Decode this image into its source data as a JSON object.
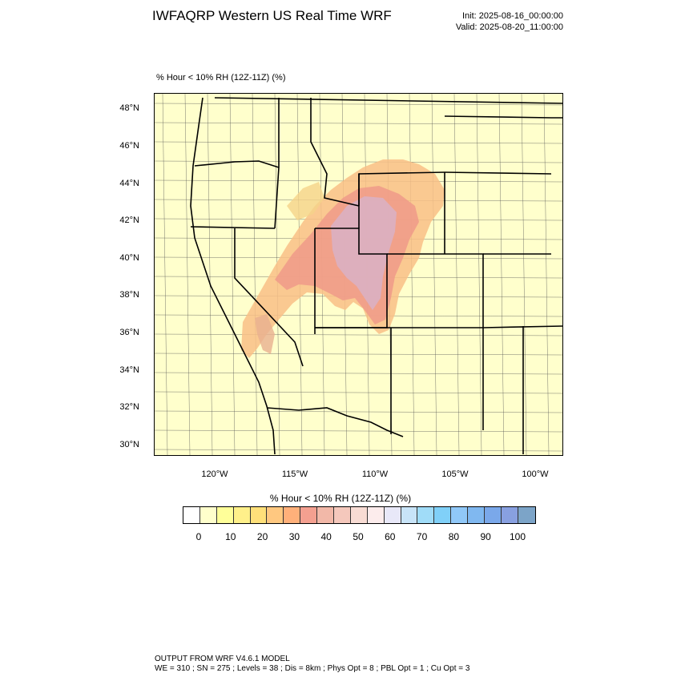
{
  "header": {
    "title": "IWFAQRP Western US Real Time WRF",
    "init": "Init: 2025-08-16_00:00:00",
    "valid": "Valid: 2025-08-20_11:00:00"
  },
  "variable_label": "% Hour < 10% RH (12Z-11Z)   (%)",
  "map": {
    "lat_labels": [
      "48°N",
      "46°N",
      "44°N",
      "42°N",
      "40°N",
      "38°N",
      "36°N",
      "34°N",
      "32°N",
      "30°N"
    ],
    "lon_labels": [
      "120°W",
      "115°W",
      "110°W",
      "105°W",
      "100°W"
    ],
    "background_color": "#ffffcc",
    "region": "Western US"
  },
  "colorbar": {
    "title": "% Hour < 10% RH (12Z-11Z)  (%)",
    "tick_labels": [
      "0",
      "10",
      "20",
      "30",
      "40",
      "50",
      "60",
      "70",
      "80",
      "90",
      "100"
    ],
    "colors": [
      "#ffffff",
      "#ffffcc",
      "#ffff99",
      "#fff08a",
      "#ffe07a",
      "#ffc880",
      "#ffb07a",
      "#f4a090",
      "#f2b8a8",
      "#f5c8bc",
      "#f8dcd4",
      "#fcecec",
      "#e8e8f8",
      "#c8e4f8",
      "#a0dcf8",
      "#80d0f8",
      "#90c8f8",
      "#80b8f0",
      "#7aa8ea",
      "#88a0e0",
      "#7ca4c8"
    ]
  },
  "footer": {
    "line1": "OUTPUT FROM WRF V4.6.1 MODEL",
    "line2": "WE = 310 ; SN = 275 ; Levels = 38 ; Dis = 8km ; Phys Opt = 8 ; PBL Opt = 1 ; Cu Opt = 3"
  }
}
